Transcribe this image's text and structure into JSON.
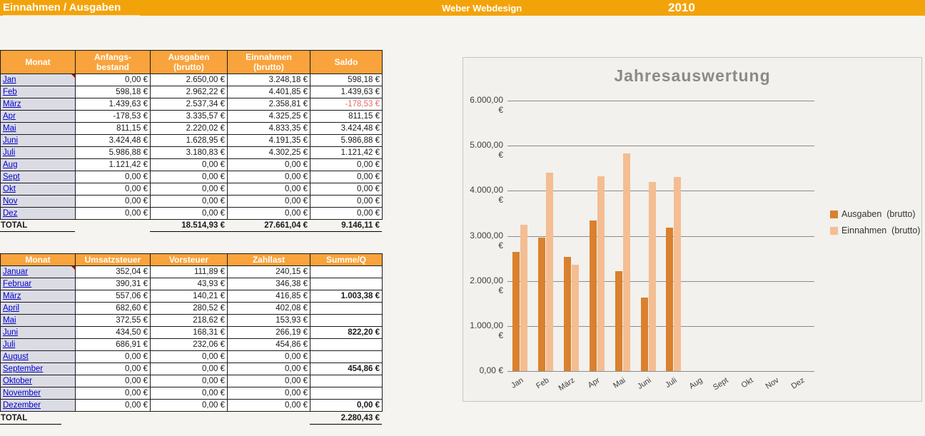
{
  "topbar": {
    "title": "Einnahmen / Ausgaben",
    "company": "Weber Webdesign",
    "year": "2010"
  },
  "colors": {
    "accent_orange": "#F3A30A",
    "table_header_orange": "#F9A33C",
    "month_cell_bg": "#DBDBE4",
    "link_blue": "#0000CE",
    "negative_red": "#E8696B",
    "bar_dark": "#D9812E",
    "bar_light": "#F4BD92"
  },
  "table1": {
    "headers": [
      "Monat",
      "Anfangs-\nbestand",
      "Ausgaben\n(brutto)",
      "Einnahmen\n(brutto)",
      "Saldo"
    ],
    "rows": [
      {
        "month": "Jan",
        "has_comment": true,
        "cells": [
          "0,00 €",
          "2.650,00 €",
          "3.248,18 €",
          "598,18 €"
        ]
      },
      {
        "month": "Feb",
        "cells": [
          "598,18 €",
          "2.962,22 €",
          "4.401,85 €",
          "1.439,63 €"
        ]
      },
      {
        "month": "März",
        "neg_index": 3,
        "cells": [
          "1.439,63 €",
          "2.537,34 €",
          "2.358,81 €",
          "-178,53 €"
        ]
      },
      {
        "month": "Apr",
        "cells": [
          "-178,53 €",
          "3.335,57 €",
          "4.325,25 €",
          "811,15 €"
        ]
      },
      {
        "month": "Mai",
        "cells": [
          "811,15 €",
          "2.220,02 €",
          "4.833,35 €",
          "3.424,48 €"
        ]
      },
      {
        "month": "Juni",
        "cells": [
          "3.424,48 €",
          "1.628,95 €",
          "4.191,35 €",
          "5.986,88 €"
        ]
      },
      {
        "month": "Juli",
        "cells": [
          "5.986,88 €",
          "3.180,83 €",
          "4.302,25 €",
          "1.121,42 €"
        ]
      },
      {
        "month": "Aug",
        "cells": [
          "1.121,42 €",
          "0,00 €",
          "0,00 €",
          "0,00 €"
        ]
      },
      {
        "month": "Sept",
        "cells": [
          "0,00 €",
          "0,00 €",
          "0,00 €",
          "0,00 €"
        ]
      },
      {
        "month": "Okt",
        "cells": [
          "0,00 €",
          "0,00 €",
          "0,00 €",
          "0,00 €"
        ]
      },
      {
        "month": "Nov",
        "cells": [
          "0,00 €",
          "0,00 €",
          "0,00 €",
          "0,00 €"
        ]
      },
      {
        "month": "Dez",
        "cells": [
          "0,00 €",
          "0,00 €",
          "0,00 €",
          "0,00 €"
        ]
      }
    ],
    "total_label": "TOTAL",
    "total_cells": [
      "18.514,93 €",
      "27.661,04 €",
      "9.146,11 €"
    ]
  },
  "table2": {
    "headers": [
      "Monat",
      "Umsatzsteuer",
      "Vorsteuer",
      "Zahllast",
      "Summe/Q"
    ],
    "rows": [
      {
        "month": "Januar",
        "has_comment": true,
        "cells": [
          "352,04 €",
          "111,89 €",
          "240,15 €",
          ""
        ]
      },
      {
        "month": "Februar",
        "cells": [
          "390,31 €",
          "43,93 €",
          "346,38 €",
          ""
        ]
      },
      {
        "month": "März",
        "cells": [
          "557,06 €",
          "140,21 €",
          "416,85 €",
          "1.003,38 €"
        ]
      },
      {
        "month": "April",
        "cells": [
          "682,60 €",
          "280,52 €",
          "402,08 €",
          ""
        ]
      },
      {
        "month": "Mai",
        "cells": [
          "372,55 €",
          "218,62 €",
          "153,93 €",
          ""
        ]
      },
      {
        "month": "Juni",
        "cells": [
          "434,50 €",
          "168,31 €",
          "266,19 €",
          "822,20 €"
        ]
      },
      {
        "month": "Juli",
        "cells": [
          "686,91 €",
          "232,06 €",
          "454,86 €",
          ""
        ]
      },
      {
        "month": "August",
        "cells": [
          "0,00 €",
          "0,00 €",
          "0,00 €",
          ""
        ]
      },
      {
        "month": "September",
        "cells": [
          "0,00 €",
          "0,00 €",
          "0,00 €",
          "454,86 €"
        ]
      },
      {
        "month": "Oktober",
        "cells": [
          "0,00 €",
          "0,00 €",
          "0,00 €",
          ""
        ]
      },
      {
        "month": "November",
        "cells": [
          "0,00 €",
          "0,00 €",
          "0,00 €",
          ""
        ]
      },
      {
        "month": "Dezember",
        "cells": [
          "0,00 €",
          "0,00 €",
          "0,00 €",
          "0,00 €"
        ]
      }
    ],
    "total_label": "TOTAL",
    "total_cells": [
      "",
      "",
      "",
      "2.280,43 €"
    ]
  },
  "chart_data": {
    "type": "bar",
    "title": "Jahresauswertung",
    "categories": [
      "Jan",
      "Feb",
      "März",
      "Apr",
      "Mai",
      "Juni",
      "Juli",
      "Aug",
      "Sept",
      "Okt",
      "Nov",
      "Dez"
    ],
    "series": [
      {
        "name": "Ausgaben  (brutto)",
        "color": "#D9812E",
        "values": [
          2650.0,
          2962.22,
          2537.34,
          3335.57,
          2220.02,
          1628.95,
          3180.83,
          0,
          0,
          0,
          0,
          0
        ]
      },
      {
        "name": "Einnahmen  (brutto)",
        "color": "#F4BD92",
        "values": [
          3248.18,
          4401.85,
          2358.81,
          4325.25,
          4833.35,
          4191.35,
          4302.25,
          0,
          0,
          0,
          0,
          0
        ]
      }
    ],
    "ylim": [
      0,
      6000
    ],
    "yticks": [
      "6.000,00 €",
      "5.000,00 €",
      "4.000,00 €",
      "3.000,00 €",
      "2.000,00 €",
      "1.000,00 €",
      "0,00 €"
    ],
    "grid": true,
    "legend_position": "right"
  }
}
